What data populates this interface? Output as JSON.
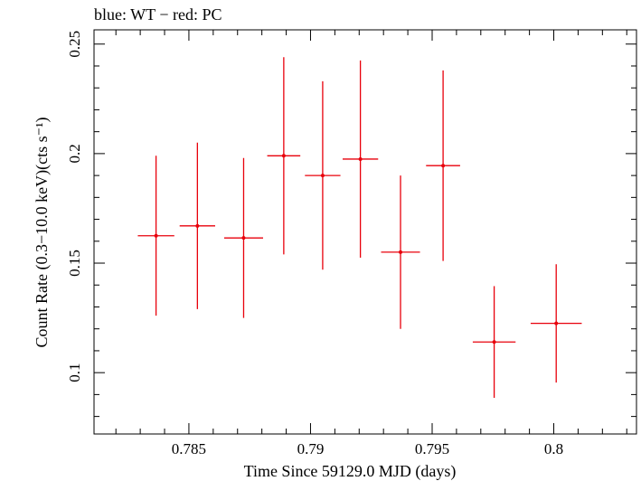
{
  "chart_data": {
    "type": "scatter",
    "title": "blue: WT − red: PC",
    "xlabel": "Time Since 59129.0 MJD (days)",
    "ylabel": "Count Rate (0.3−10.0 keV)(cts s⁻¹)",
    "xlim": [
      0.7811,
      0.8034
    ],
    "ylim": [
      0.072,
      0.2565
    ],
    "x_ticks": [
      {
        "value": 0.785,
        "label": "0.785"
      },
      {
        "value": 0.79,
        "label": "0.79"
      },
      {
        "value": 0.795,
        "label": "0.795"
      },
      {
        "value": 0.8,
        "label": "0.8"
      }
    ],
    "y_ticks": [
      {
        "value": 0.1,
        "label": "0.1"
      },
      {
        "value": 0.15,
        "label": "0.15"
      },
      {
        "value": 0.2,
        "label": "0.2"
      },
      {
        "value": 0.25,
        "label": "0.25"
      }
    ],
    "series": [
      {
        "color": "#e8000b",
        "points": [
          {
            "x": 0.78365,
            "y": 0.1625,
            "xerr": 0.00075,
            "yerr": 0.0365
          },
          {
            "x": 0.78535,
            "y": 0.167,
            "xerr": 0.00073,
            "yerr": 0.038
          },
          {
            "x": 0.78725,
            "y": 0.1615,
            "xerr": 0.0008,
            "yerr": 0.0365
          },
          {
            "x": 0.7889,
            "y": 0.199,
            "xerr": 0.00068,
            "yerr": 0.045
          },
          {
            "x": 0.7905,
            "y": 0.19,
            "xerr": 0.00073,
            "yerr": 0.043
          },
          {
            "x": 0.79205,
            "y": 0.1975,
            "xerr": 0.00073,
            "yerr": 0.045
          },
          {
            "x": 0.7937,
            "y": 0.155,
            "xerr": 0.0008,
            "yerr": 0.035
          },
          {
            "x": 0.79545,
            "y": 0.1945,
            "xerr": 0.0007,
            "yerr": 0.0435
          },
          {
            "x": 0.79755,
            "y": 0.114,
            "xerr": 0.00088,
            "yerr": 0.0255
          },
          {
            "x": 0.8001,
            "y": 0.1225,
            "xerr": 0.00105,
            "yerr": 0.027
          }
        ]
      }
    ]
  }
}
